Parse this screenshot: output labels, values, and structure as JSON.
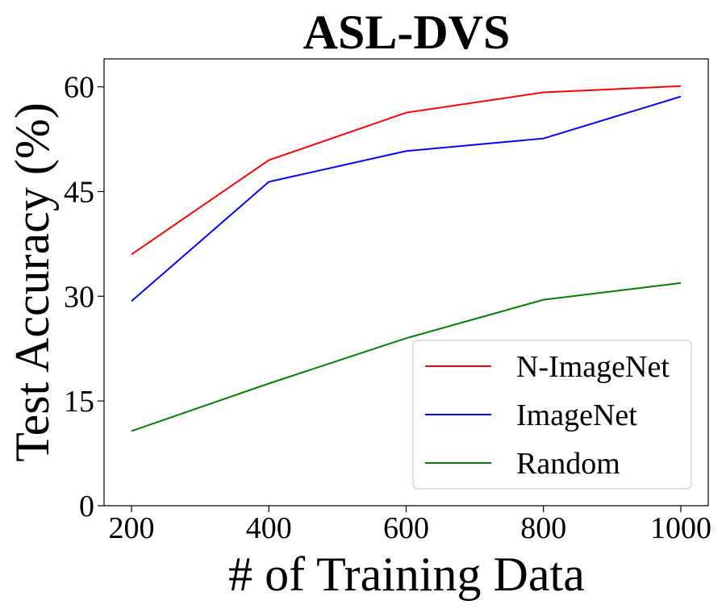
{
  "chart_data": {
    "type": "line",
    "title": "ASL-DVS",
    "xlabel": "# of Training Data",
    "ylabel": "Test Accuracy (%)",
    "x": [
      200,
      400,
      600,
      800,
      1000
    ],
    "xticks": [
      "200",
      "400",
      "600",
      "800",
      "1000"
    ],
    "yticks": [
      "0",
      "15",
      "30",
      "45",
      "60"
    ],
    "xlim": [
      160,
      1040
    ],
    "ylim": [
      0,
      64
    ],
    "grid": false,
    "legend_position": "lower-right",
    "series": [
      {
        "name": "N-ImageNet",
        "color": "#ff0000",
        "values": [
          36.0,
          49.5,
          56.3,
          59.2,
          60.1
        ]
      },
      {
        "name": "ImageNet",
        "color": "#0000ff",
        "values": [
          29.3,
          46.4,
          50.8,
          52.6,
          58.6
        ]
      },
      {
        "name": "Random",
        "color": "#008000",
        "values": [
          10.7,
          17.5,
          24.0,
          29.5,
          31.9
        ]
      }
    ]
  }
}
